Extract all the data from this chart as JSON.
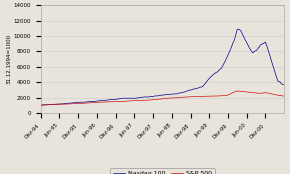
{
  "ylabel": "31.12.1994=1000",
  "ylim": [
    0,
    14000
  ],
  "yticks": [
    0,
    2000,
    4000,
    6000,
    8000,
    10000,
    12000,
    14000
  ],
  "background_color": "#e8e4dc",
  "plot_bg_color": "#e8e4dc",
  "nasdaq_color": "#00008b",
  "sp500_color": "#cc1111",
  "legend_labels": [
    "Nasdaq 100",
    "S&P 500"
  ],
  "x_tick_labels": [
    "Dez-94",
    "Jun-95",
    "Dez-95",
    "Jun-96",
    "Dez-96",
    "Jun-97",
    "Dez-97",
    "Jun-98",
    "Dez-98",
    "Jun-99",
    "Dez-99",
    "Jun-00",
    "Dez-00"
  ],
  "nasdaq_kx": [
    0,
    6,
    12,
    18,
    24,
    30,
    36,
    40,
    44,
    48,
    52,
    54,
    56,
    58,
    60,
    62,
    63,
    64,
    65,
    66,
    67,
    68,
    70,
    72,
    74,
    76,
    78
  ],
  "nasdaq_ky": [
    1000,
    1150,
    1380,
    1520,
    1680,
    1950,
    2150,
    2400,
    2600,
    3000,
    3500,
    4500,
    5200,
    6000,
    7500,
    9500,
    11000,
    10800,
    10000,
    9200,
    8500,
    8000,
    8800,
    9500,
    7000,
    4500,
    4200
  ],
  "sp500_kx": [
    0,
    6,
    12,
    18,
    24,
    30,
    36,
    40,
    44,
    48,
    52,
    54,
    56,
    58,
    60,
    62,
    63,
    64,
    66,
    68,
    70,
    72,
    74,
    76,
    78
  ],
  "sp500_ky": [
    1000,
    1100,
    1220,
    1380,
    1480,
    1650,
    1780,
    1900,
    2000,
    2100,
    2150,
    2150,
    2200,
    2250,
    2350,
    2800,
    2900,
    2850,
    2750,
    2700,
    2600,
    2700,
    2550,
    2350,
    2250
  ],
  "noise_nasdaq": 150,
  "noise_sp500": 35,
  "months": 78
}
